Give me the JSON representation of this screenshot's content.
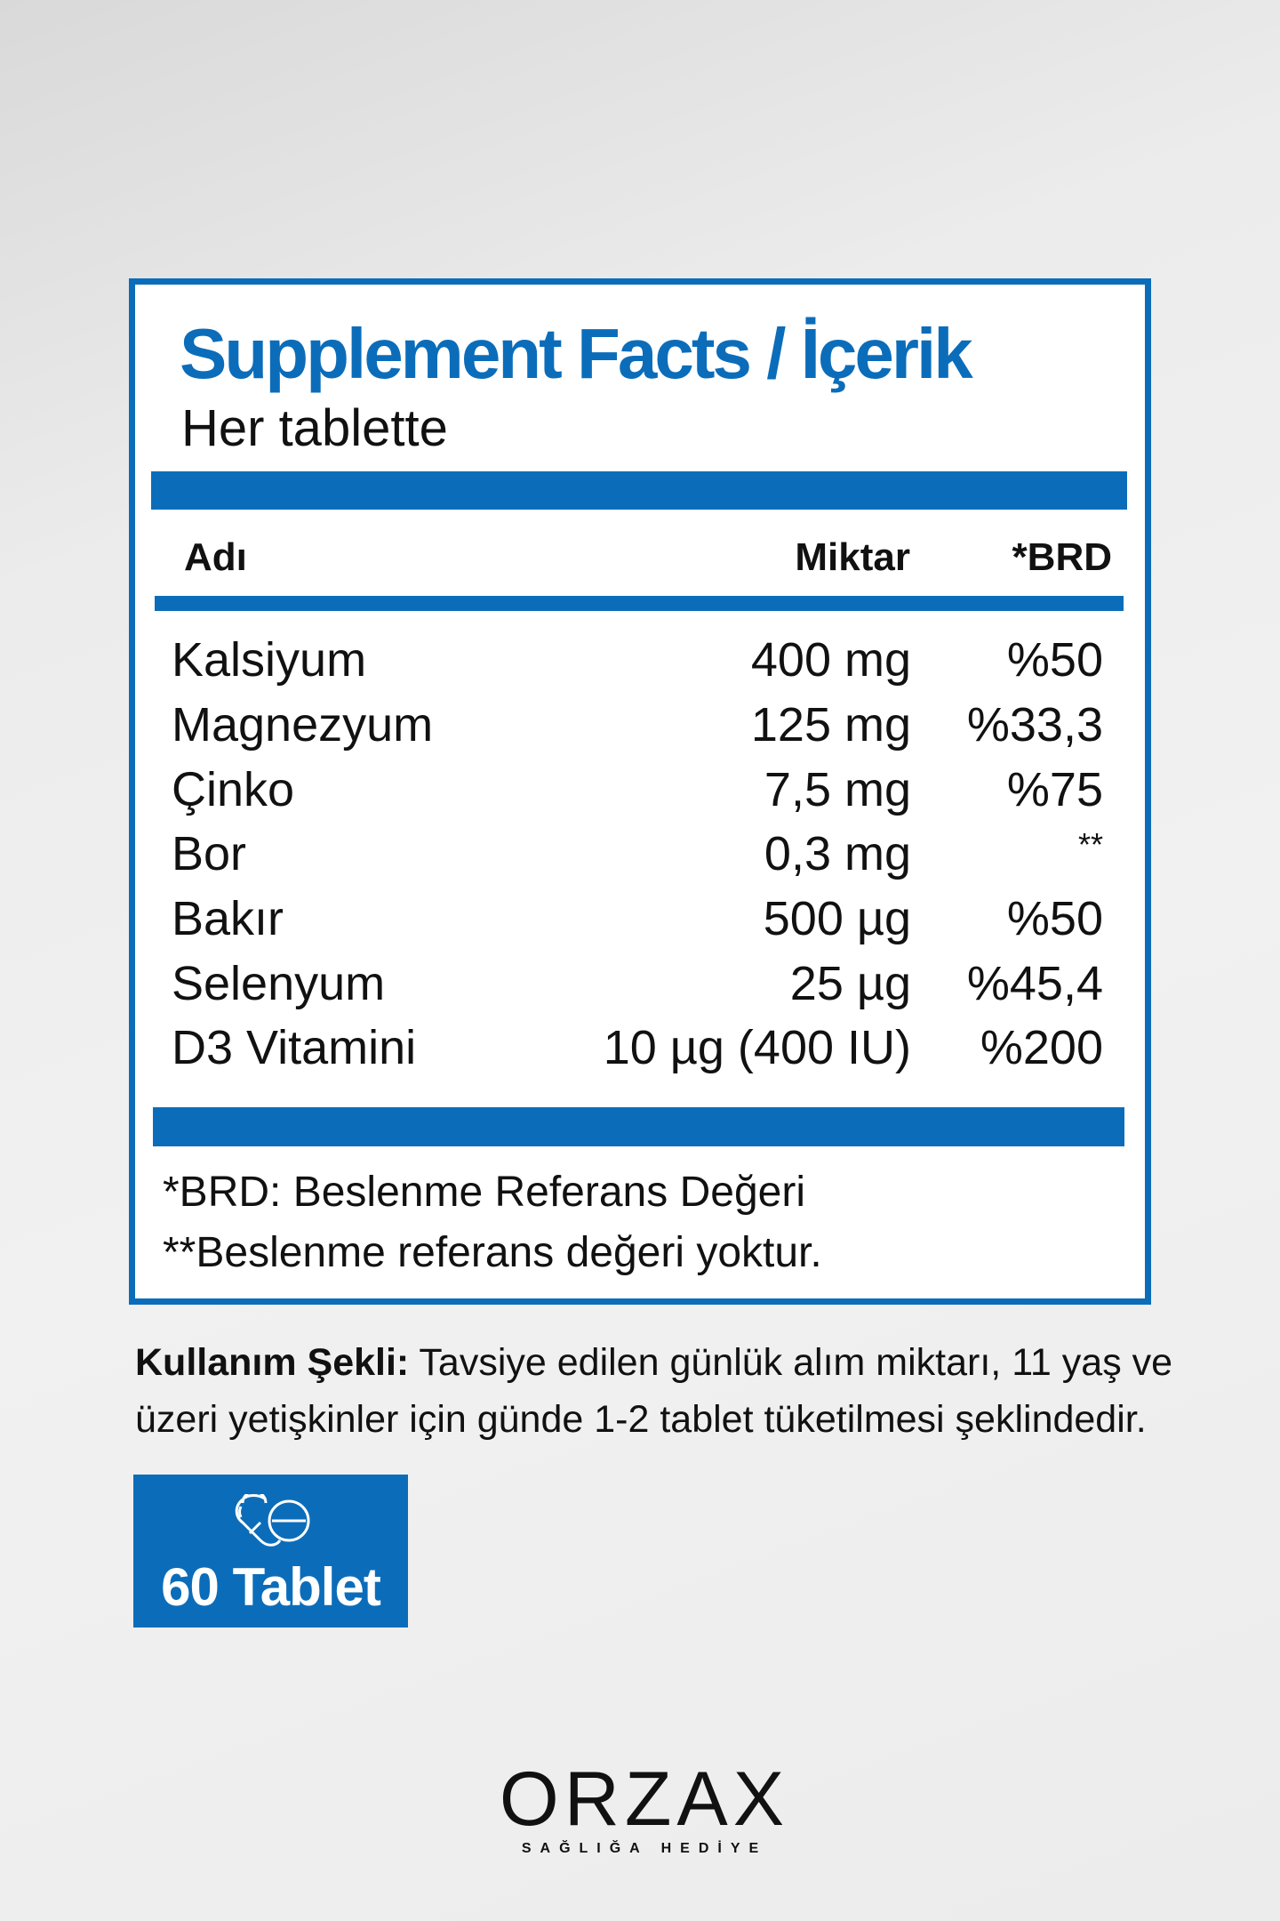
{
  "panel": {
    "title": "Supplement Facts / İçerik",
    "subtitle": "Her tablette"
  },
  "table": {
    "headers": {
      "name": "Adı",
      "amount": "Miktar",
      "rda": "*BRD"
    },
    "rows": [
      {
        "name": "Kalsiyum",
        "amount": "400 mg",
        "rda": "%50"
      },
      {
        "name": "Magnezyum",
        "amount": "125 mg",
        "rda": "%33,3"
      },
      {
        "name": "Çinko",
        "amount": "7,5 mg",
        "rda": "%75"
      },
      {
        "name": "Bor",
        "amount": "0,3 mg",
        "rda": "**"
      },
      {
        "name": "Bakır",
        "amount": "500 µg",
        "rda": "%50"
      },
      {
        "name": "Selenyum",
        "amount": "25 µg",
        "rda": "%45,4"
      },
      {
        "name": "D3 Vitamini",
        "amount": "10 µg (400 IU)",
        "rda": "%200"
      }
    ]
  },
  "footnotes": [
    "*BRD: Beslenme Referans Değeri",
    "**Beslenme referans değeri yoktur."
  ],
  "usage": {
    "label": "Kullanım Şekli:",
    "text": " Tavsiye edilen günlük alım miktarı, 11 yaş ve üzeri yetişkinler için günde 1-2 tablet tüketilmesi şeklindedir."
  },
  "badge": {
    "icon": "pill-tablet-icon",
    "label": "60 Tablet"
  },
  "logo": {
    "brand": "ORZAX",
    "tagline": "SAĞLIĞA HEDİYE"
  },
  "colors": {
    "accent": "#0b6dba"
  }
}
